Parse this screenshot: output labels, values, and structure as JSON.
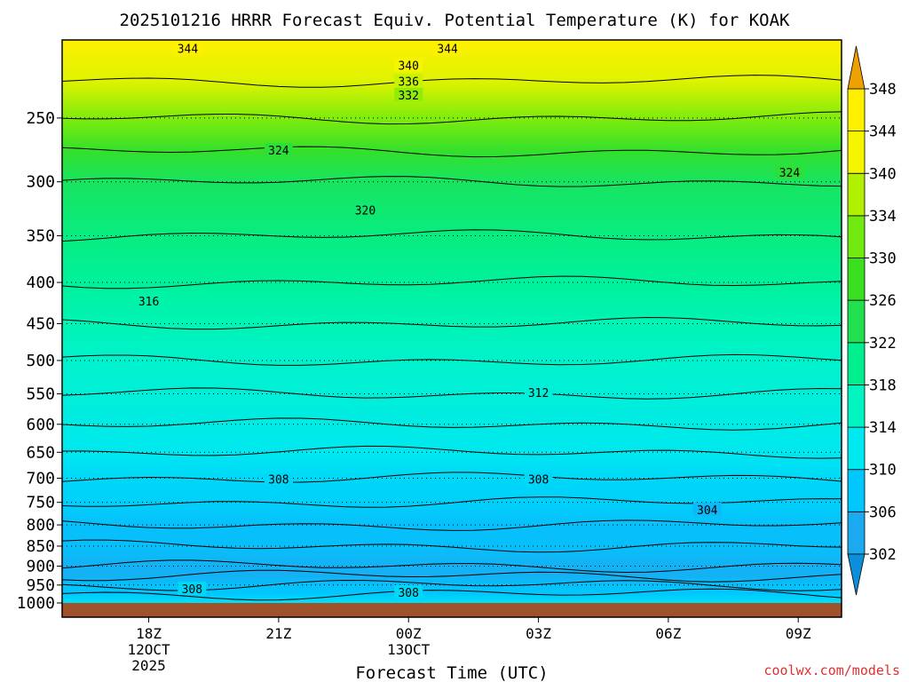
{
  "chart_data": {
    "type": "heatmap",
    "title": "2025101216 HRRR Forecast Equiv. Potential Temperature (K) for KOAK",
    "xlabel": "Forecast Time (UTC)",
    "ylabel": "",
    "watermark": "coolwx.com/models",
    "y_axis": {
      "scale": "log",
      "ticks": [
        250,
        300,
        350,
        400,
        450,
        500,
        550,
        600,
        650,
        700,
        750,
        800,
        850,
        900,
        950,
        1000
      ],
      "range": [
        1000,
        200
      ],
      "units": "hPa"
    },
    "x_axis": {
      "ticks": [
        {
          "hour": 18,
          "label": "18Z",
          "date": "12OCT",
          "year": "2025"
        },
        {
          "hour": 21,
          "label": "21Z",
          "date": "",
          "year": ""
        },
        {
          "hour": 24,
          "label": "00Z",
          "date": "13OCT",
          "year": ""
        },
        {
          "hour": 27,
          "label": "03Z",
          "date": "",
          "year": ""
        },
        {
          "hour": 30,
          "label": "06Z",
          "date": "",
          "year": ""
        },
        {
          "hour": 33,
          "label": "09Z",
          "date": "",
          "year": ""
        }
      ],
      "range": [
        16,
        34
      ]
    },
    "colorbar": {
      "labels": [
        302,
        306,
        310,
        314,
        318,
        322,
        326,
        330,
        334,
        340,
        344,
        348
      ],
      "colors": [
        "#0b8fdb",
        "#1ba9f0",
        "#00c8ff",
        "#00e8f0",
        "#00f5c0",
        "#00f090",
        "#20e050",
        "#3ae020",
        "#70ea10",
        "#b0f000",
        "#f5f500",
        "#fff000",
        "#f5c800",
        "#eea000"
      ],
      "extend": "both"
    },
    "theta_e_profile_K": {
      "pressure_hPa": [
        1000,
        975,
        950,
        925,
        900,
        850,
        800,
        750,
        700,
        650,
        600,
        550,
        500,
        450,
        400,
        350,
        300,
        275,
        250,
        225,
        200
      ],
      "values": [
        309,
        306,
        305,
        303,
        303,
        305,
        305,
        307,
        308,
        310,
        311,
        312,
        313,
        315,
        317,
        319,
        321,
        325,
        331,
        338,
        344
      ]
    },
    "contour_labels": [
      {
        "label": "344",
        "hour": 18.9,
        "p": 205
      },
      {
        "label": "344",
        "hour": 24.9,
        "p": 205
      },
      {
        "label": "340",
        "hour": 24.0,
        "p": 215
      },
      {
        "label": "336",
        "hour": 24.0,
        "p": 225
      },
      {
        "label": "332",
        "hour": 24.0,
        "p": 234
      },
      {
        "label": "324",
        "hour": 21.0,
        "p": 274
      },
      {
        "label": "324",
        "hour": 32.8,
        "p": 292
      },
      {
        "label": "320",
        "hour": 23.0,
        "p": 325
      },
      {
        "label": "316",
        "hour": 18.0,
        "p": 422
      },
      {
        "label": "312",
        "hour": 27.0,
        "p": 548
      },
      {
        "label": "308",
        "hour": 21.0,
        "p": 702
      },
      {
        "label": "308",
        "hour": 27.0,
        "p": 702
      },
      {
        "label": "304",
        "hour": 30.9,
        "p": 766
      },
      {
        "label": "308",
        "hour": 19.0,
        "p": 960
      },
      {
        "label": "308",
        "hour": 24.0,
        "p": 970
      }
    ]
  }
}
